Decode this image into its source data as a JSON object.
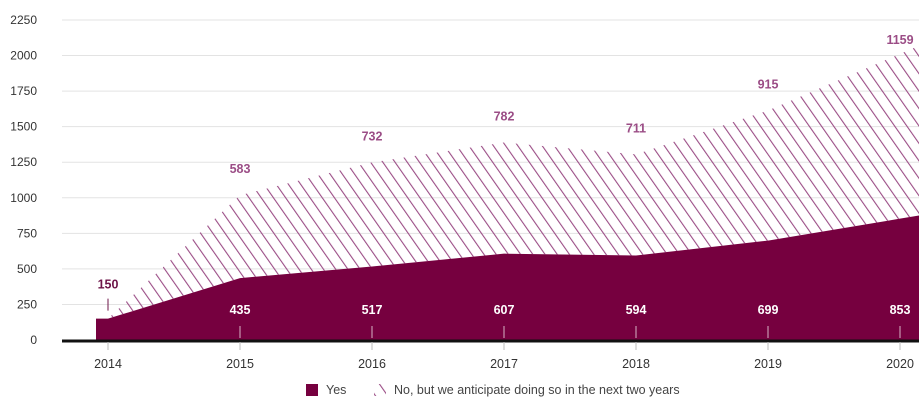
{
  "chart_data": {
    "type": "area",
    "stacked": true,
    "x": [
      "2014",
      "2015",
      "2016",
      "2017",
      "2018",
      "2019",
      "2020"
    ],
    "series": [
      {
        "name": "Yes",
        "values": [
          150,
          435,
          517,
          607,
          594,
          699,
          853
        ],
        "color": "#76003f",
        "pattern": "solid"
      },
      {
        "name": "No, but we anticipate doing so in the next two years",
        "values": [
          0,
          583,
          732,
          782,
          711,
          915,
          1159
        ],
        "color": "#9b4d86",
        "pattern": "diagonal-hatch"
      }
    ],
    "ylim": [
      0,
      2250
    ],
    "yticks": [
      "0",
      "250",
      "500",
      "750",
      "1000",
      "1250",
      "1500",
      "1750",
      "2000",
      "2250"
    ],
    "grid": true,
    "legend": "bottom-center"
  }
}
